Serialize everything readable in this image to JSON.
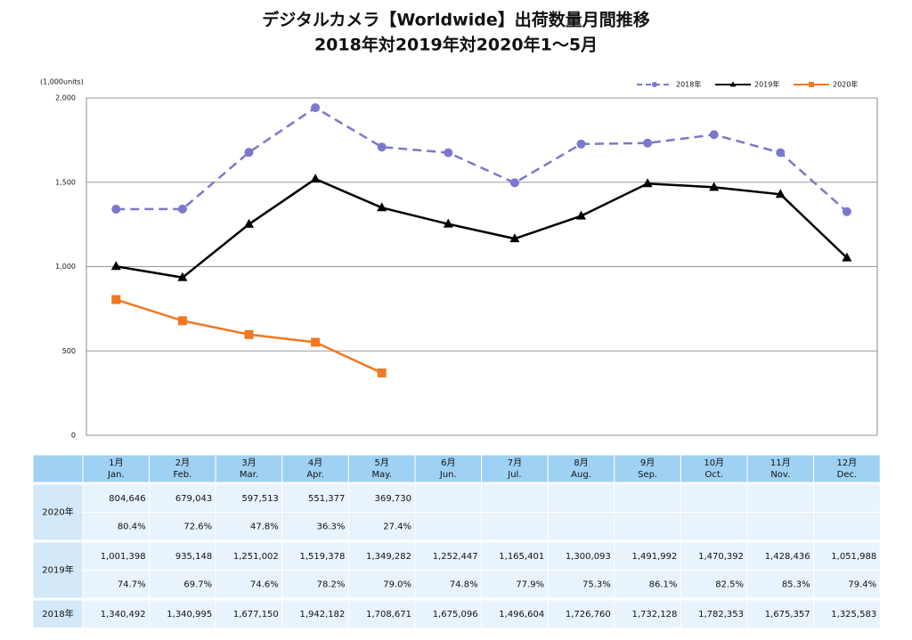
{
  "title": "デジタルカメラ【Worldwide】出荷数量月間推移",
  "subtitle": "2018年対2019年対2020年1～5月",
  "chart_data": {
    "type": "line",
    "y_label": "(1,000units)",
    "ylim": [
      0,
      2000
    ],
    "yticks": [
      0,
      500,
      {
        "value": 1000,
        "label": "1,000"
      },
      {
        "value": 1500,
        "label": "1,500"
      },
      {
        "value": 2000,
        "label": "2,000"
      }
    ],
    "grid": true,
    "legend": "top-right",
    "series": [
      {
        "name": "2018年",
        "color": "#7b78cc",
        "dash": true,
        "marker": "circle",
        "values": [
          1340.492,
          1340.995,
          1677.15,
          1942.182,
          1708.671,
          1675.096,
          1496.604,
          1726.76,
          1732.128,
          1782.353,
          1675.357,
          1325.583
        ]
      },
      {
        "name": "2019年",
        "color": "#000000",
        "dash": false,
        "marker": "triangle",
        "values": [
          1001.398,
          935.148,
          1251.002,
          1519.378,
          1349.282,
          1252.447,
          1165.401,
          1300.093,
          1491.992,
          1470.392,
          1428.436,
          1051.988
        ]
      },
      {
        "name": "2020年",
        "color": "#f07820",
        "dash": false,
        "marker": "square",
        "values": [
          804.646,
          679.043,
          597.513,
          551.377,
          369.73
        ]
      }
    ]
  },
  "table": {
    "columns": [
      {
        "ja": "1月",
        "en": "Jan."
      },
      {
        "ja": "2月",
        "en": "Feb."
      },
      {
        "ja": "3月",
        "en": "Mar."
      },
      {
        "ja": "4月",
        "en": "Apr."
      },
      {
        "ja": "5月",
        "en": "May."
      },
      {
        "ja": "6月",
        "en": "Jun."
      },
      {
        "ja": "7月",
        "en": "Jul."
      },
      {
        "ja": "8月",
        "en": "Aug."
      },
      {
        "ja": "9月",
        "en": "Sep."
      },
      {
        "ja": "10月",
        "en": "Oct."
      },
      {
        "ja": "11月",
        "en": "Nov."
      },
      {
        "ja": "12月",
        "en": "Dec."
      }
    ],
    "rows": [
      {
        "label": "2020年",
        "lines": [
          [
            "804,646",
            "679,043",
            "597,513",
            "551,377",
            "369,730"
          ],
          [
            "80.4%",
            "72.6%",
            "47.8%",
            "36.3%",
            "27.4%"
          ]
        ]
      },
      {
        "label": "2019年",
        "lines": [
          [
            "1,001,398",
            "935,148",
            "1,251,002",
            "1,519,378",
            "1,349,282",
            "1,252,447",
            "1,165,401",
            "1,300,093",
            "1,491,992",
            "1,470,392",
            "1,428,436",
            "1,051,988"
          ],
          [
            "74.7%",
            "69.7%",
            "74.6%",
            "78.2%",
            "79.0%",
            "74.8%",
            "77.9%",
            "75.3%",
            "86.1%",
            "82.5%",
            "85.3%",
            "79.4%"
          ]
        ]
      },
      {
        "label": "2018年",
        "lines": [
          [
            "1,340,492",
            "1,340,995",
            "1,677,150",
            "1,942,182",
            "1,708,671",
            "1,675,096",
            "1,496,604",
            "1,726,760",
            "1,732,128",
            "1,782,353",
            "1,675,357",
            "1,325,583"
          ]
        ]
      }
    ]
  }
}
